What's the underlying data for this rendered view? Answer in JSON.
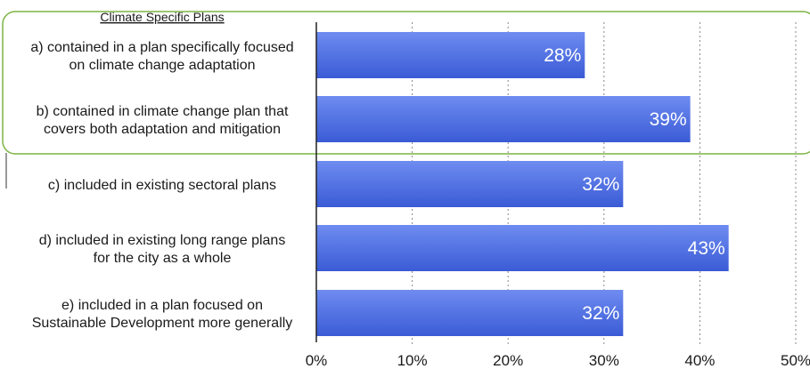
{
  "chart_data": {
    "type": "bar",
    "orientation": "horizontal",
    "group_title": "Climate Specific Plans",
    "categories": [
      [
        "a) contained in a plan specifically focused",
        "on climate change adaptation"
      ],
      [
        "b) contained in climate change plan that",
        "covers both adaptation and mitigation"
      ],
      [
        "c) included in existing sectoral plans"
      ],
      [
        "d) included in existing long range plans",
        "for the city as a whole"
      ],
      [
        "e) included in a plan focused on",
        "Sustainable Development more generally"
      ]
    ],
    "values": [
      28,
      39,
      32,
      43,
      32
    ],
    "data_labels": [
      "28%",
      "39%",
      "32%",
      "43%",
      "32%"
    ],
    "xlim": [
      0,
      50
    ],
    "ticks": [
      0,
      10,
      20,
      30,
      40,
      50
    ],
    "tick_labels": [
      "0%",
      "10%",
      "20%",
      "30%",
      "40%",
      "50%"
    ],
    "highlighted_categories": [
      0,
      1
    ],
    "grid": "dotted vertical",
    "colors": {
      "bar": "#3b5bd6",
      "bar_light": "#6f8cf0",
      "highlight_border": "#7cb342",
      "grid": "#888888"
    }
  }
}
